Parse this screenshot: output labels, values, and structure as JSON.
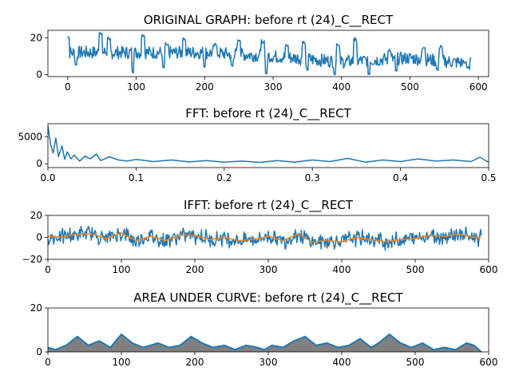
{
  "chart_data": [
    {
      "type": "line",
      "title": "ORIGINAL GRAPH: before rt (24)_C__RECT",
      "xlim": [
        -29,
        615
      ],
      "ylim": [
        -1,
        24
      ],
      "xticks": [
        0,
        100,
        200,
        300,
        400,
        500,
        600
      ],
      "yticks": [
        0,
        20
      ],
      "series": [
        {
          "color": "#1f77b4",
          "signal": {
            "n": 590,
            "base_trend": [
              [
                0,
                12
              ],
              [
                100,
                12
              ],
              [
                200,
                12
              ],
              [
                300,
                10
              ],
              [
                400,
                7
              ],
              [
                500,
                9
              ],
              [
                590,
                6
              ]
            ],
            "spikes": [
              [
                0,
                21
              ],
              [
                48,
                23
              ],
              [
                60,
                21
              ],
              [
                110,
                22
              ],
              [
                145,
                18
              ],
              [
                170,
                20
              ],
              [
                215,
                17
              ],
              [
                250,
                19
              ],
              [
                285,
                19
              ],
              [
                320,
                17
              ],
              [
                345,
                18
              ],
              [
                395,
                17
              ],
              [
                420,
                20
              ],
              [
                470,
                14
              ],
              [
                520,
                15
              ],
              [
                545,
                16
              ],
              [
                580,
                8
              ]
            ],
            "troughs": [
              [
                12,
                5
              ],
              [
                95,
                1
              ],
              [
                140,
                3
              ],
              [
                200,
                4
              ],
              [
                240,
                4
              ],
              [
                290,
                0
              ],
              [
                350,
                2
              ],
              [
                390,
                0
              ],
              [
                440,
                0
              ],
              [
                480,
                1
              ],
              [
                540,
                2
              ],
              [
                585,
                3
              ]
            ]
          }
        }
      ]
    },
    {
      "type": "line",
      "title": "FFT: before rt (24)_C__RECT",
      "xlim": [
        0,
        0.5
      ],
      "ylim": [
        -700,
        7400
      ],
      "xticks": [
        0.0,
        0.1,
        0.2,
        0.3,
        0.4,
        0.5
      ],
      "yticks": [
        0,
        5000
      ],
      "series": [
        {
          "color": "#1f77b4",
          "points": [
            [
              0.0,
              7000
            ],
            [
              0.003,
              3600
            ],
            [
              0.006,
              2000
            ],
            [
              0.009,
              4800
            ],
            [
              0.012,
              1300
            ],
            [
              0.016,
              3300
            ],
            [
              0.019,
              800
            ],
            [
              0.022,
              2200
            ],
            [
              0.026,
              900
            ],
            [
              0.03,
              1600
            ],
            [
              0.036,
              500
            ],
            [
              0.042,
              1400
            ],
            [
              0.048,
              900
            ],
            [
              0.055,
              1800
            ],
            [
              0.06,
              600
            ],
            [
              0.07,
              1300
            ],
            [
              0.08,
              700
            ],
            [
              0.09,
              500
            ],
            [
              0.1,
              800
            ],
            [
              0.12,
              400
            ],
            [
              0.14,
              700
            ],
            [
              0.16,
              350
            ],
            [
              0.18,
              600
            ],
            [
              0.2,
              300
            ],
            [
              0.22,
              500
            ],
            [
              0.24,
              250
            ],
            [
              0.26,
              600
            ],
            [
              0.28,
              300
            ],
            [
              0.3,
              700
            ],
            [
              0.32,
              400
            ],
            [
              0.34,
              1000
            ],
            [
              0.36,
              300
            ],
            [
              0.38,
              700
            ],
            [
              0.4,
              400
            ],
            [
              0.42,
              900
            ],
            [
              0.44,
              500
            ],
            [
              0.46,
              700
            ],
            [
              0.48,
              400
            ],
            [
              0.49,
              1200
            ],
            [
              0.5,
              300
            ]
          ]
        }
      ]
    },
    {
      "type": "line",
      "title": "IFFT: before rt (24)_C__RECT",
      "xlim": [
        0,
        600
      ],
      "ylim": [
        -20,
        20
      ],
      "xticks": [
        0,
        100,
        200,
        300,
        400,
        500,
        600
      ],
      "yticks": [
        -20,
        0,
        20
      ],
      "series": [
        {
          "color": "#1f77b4",
          "noise_amplitude": 6,
          "follows": "smoothed"
        },
        {
          "color": "#ff7f0e",
          "points": [
            [
              0,
              1
            ],
            [
              20,
              0
            ],
            [
              40,
              3
            ],
            [
              60,
              3
            ],
            [
              80,
              -1
            ],
            [
              100,
              4
            ],
            [
              120,
              -3
            ],
            [
              140,
              1
            ],
            [
              160,
              -3
            ],
            [
              180,
              2
            ],
            [
              200,
              2
            ],
            [
              220,
              -2
            ],
            [
              240,
              0
            ],
            [
              260,
              -3
            ],
            [
              280,
              -2
            ],
            [
              300,
              1
            ],
            [
              320,
              -3
            ],
            [
              340,
              3
            ],
            [
              360,
              -4
            ],
            [
              380,
              -3
            ],
            [
              400,
              -4
            ],
            [
              420,
              0
            ],
            [
              440,
              -2
            ],
            [
              460,
              -4
            ],
            [
              480,
              -2
            ],
            [
              500,
              -1
            ],
            [
              520,
              2
            ],
            [
              540,
              1
            ],
            [
              560,
              3
            ],
            [
              580,
              0
            ],
            [
              590,
              0
            ]
          ]
        }
      ]
    },
    {
      "type": "area",
      "title": "AREA UNDER CURVE: before rt (24)_C__RECT",
      "xlim": [
        0,
        600
      ],
      "ylim": [
        0,
        20
      ],
      "xticks": [
        0,
        100,
        200,
        300,
        400,
        500,
        600
      ],
      "yticks": [
        0,
        20
      ],
      "fill_color": "#808080",
      "series": [
        {
          "color": "#1f77b4",
          "points": [
            [
              0,
              2
            ],
            [
              10,
              1
            ],
            [
              25,
              3
            ],
            [
              40,
              7
            ],
            [
              55,
              3
            ],
            [
              70,
              5
            ],
            [
              85,
              2
            ],
            [
              100,
              8
            ],
            [
              115,
              4
            ],
            [
              130,
              2
            ],
            [
              150,
              4
            ],
            [
              165,
              2
            ],
            [
              180,
              3
            ],
            [
              195,
              7
            ],
            [
              210,
              4
            ],
            [
              225,
              2
            ],
            [
              240,
              3
            ],
            [
              255,
              1
            ],
            [
              270,
              3
            ],
            [
              285,
              2
            ],
            [
              295,
              1
            ],
            [
              305,
              3
            ],
            [
              320,
              2
            ],
            [
              335,
              5
            ],
            [
              350,
              7
            ],
            [
              365,
              3
            ],
            [
              380,
              4
            ],
            [
              395,
              2
            ],
            [
              410,
              3
            ],
            [
              425,
              6
            ],
            [
              440,
              2
            ],
            [
              450,
              4
            ],
            [
              465,
              8
            ],
            [
              480,
              4
            ],
            [
              495,
              2
            ],
            [
              510,
              4
            ],
            [
              525,
              1
            ],
            [
              540,
              2
            ],
            [
              555,
              1
            ],
            [
              570,
              4
            ],
            [
              580,
              3
            ],
            [
              590,
              0
            ]
          ]
        }
      ]
    }
  ]
}
